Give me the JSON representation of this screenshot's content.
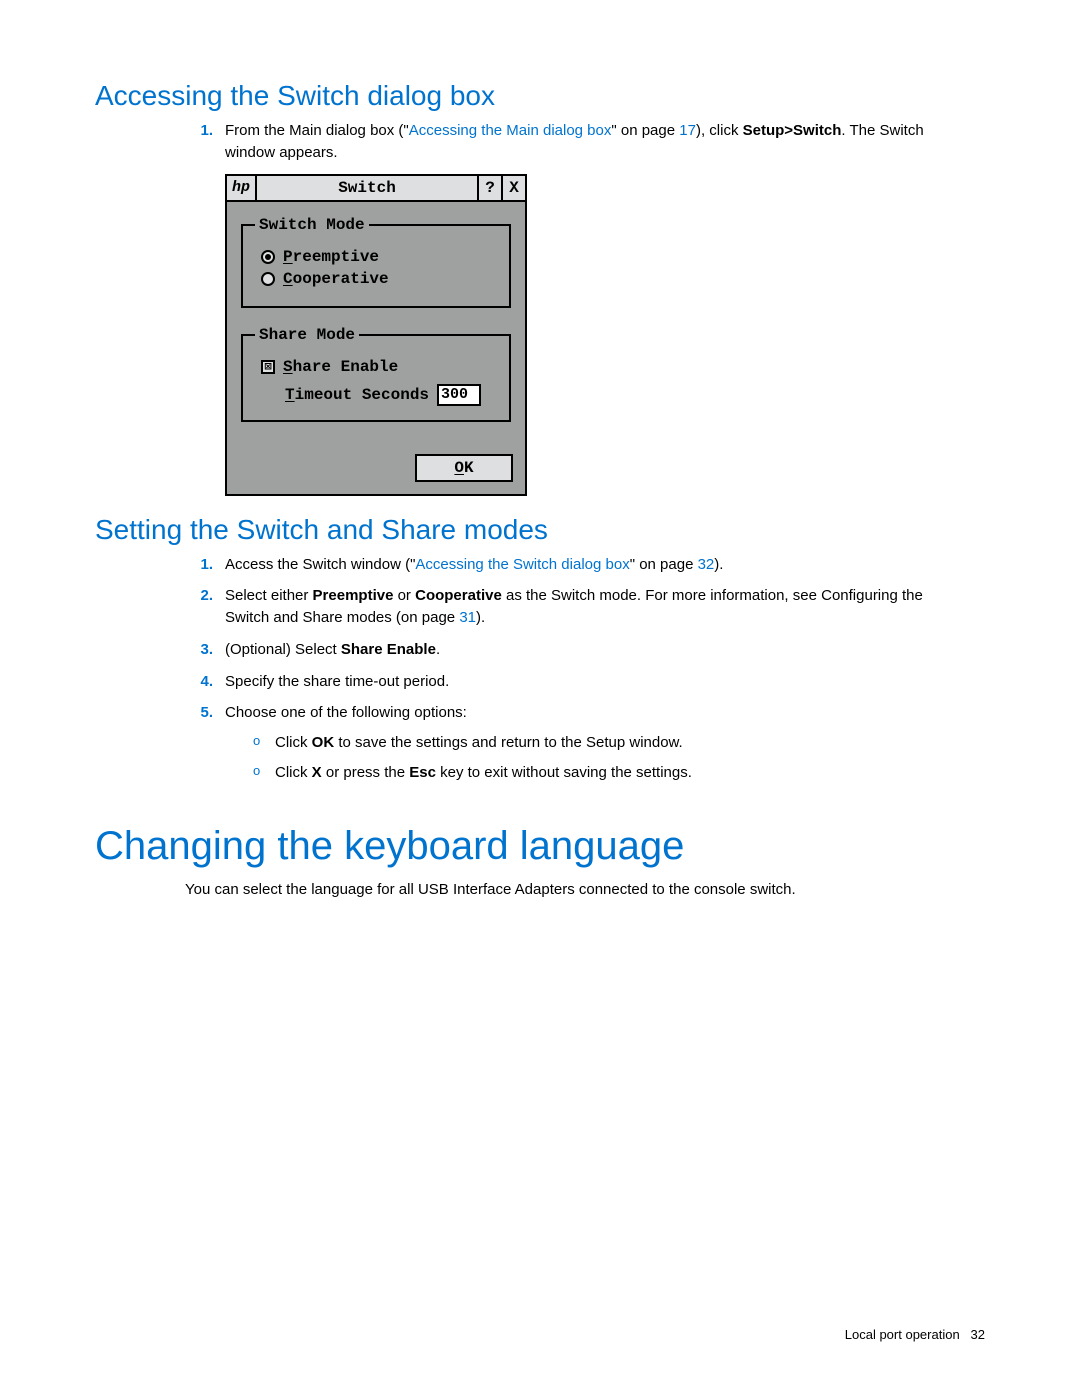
{
  "section1": {
    "heading": "Accessing the Switch dialog box",
    "step1_prefix": "From the Main dialog box (\"",
    "step1_link": "Accessing the Main dialog box",
    "step1_mid": "\" on page ",
    "step1_page": "17",
    "step1_after": "), click ",
    "step1_bold": "Setup>Switch",
    "step1_tail": ". The Switch window appears."
  },
  "dialog": {
    "logo": "hp",
    "title": "Switch",
    "help_glyph": "?",
    "close_glyph": "X",
    "group_switch": "Switch Mode",
    "radio_preemptive_u": "P",
    "radio_preemptive_rest": "reemptive",
    "radio_cooperative_u": "C",
    "radio_cooperative_rest": "ooperative",
    "group_share": "Share Mode",
    "chk_share_u": "S",
    "chk_share_rest": "hare Enable",
    "chk_glyph": "⊠",
    "timeout_u": "T",
    "timeout_rest": "imeout Seconds",
    "timeout_value": "300",
    "ok_u": "O",
    "ok_rest": "K"
  },
  "section2": {
    "heading": "Setting the Switch and Share modes",
    "s1_prefix": "Access the Switch window (\"",
    "s1_link": "Accessing the Switch dialog box",
    "s1_mid": "\" on page ",
    "s1_page": "32",
    "s1_tail": ").",
    "s2_prefix": "Select either ",
    "s2_b1": "Preemptive",
    "s2_mid1": " or ",
    "s2_b2": "Cooperative",
    "s2_mid2": " as the Switch mode. For more information, see Configuring the Switch and Share modes (on page ",
    "s2_page": "31",
    "s2_tail": ").",
    "s3_prefix": "(Optional) Select ",
    "s3_b": "Share Enable",
    "s3_tail": ".",
    "s4": "Specify the share time-out period.",
    "s5": "Choose one of the following options:",
    "s5a_pre": "Click ",
    "s5a_b": "OK",
    "s5a_tail": " to save the settings and return to the Setup window.",
    "s5b_pre": "Click ",
    "s5b_b1": "X",
    "s5b_mid": " or press the ",
    "s5b_b2": "Esc",
    "s5b_tail": " key to exit without saving the settings."
  },
  "section3": {
    "heading": "Changing the keyboard language",
    "para": "You can select the language for all USB Interface Adapters connected to the console switch."
  },
  "footer": {
    "text": "Local port operation",
    "page": "32"
  },
  "nums": {
    "n1": "1.",
    "n2": "2.",
    "n3": "3.",
    "n4": "4.",
    "n5": "5."
  },
  "colors": {
    "link_blue": "#0073cf",
    "dialog_bg": "#9fa0a0",
    "dialog_light": "#dedfe0"
  }
}
